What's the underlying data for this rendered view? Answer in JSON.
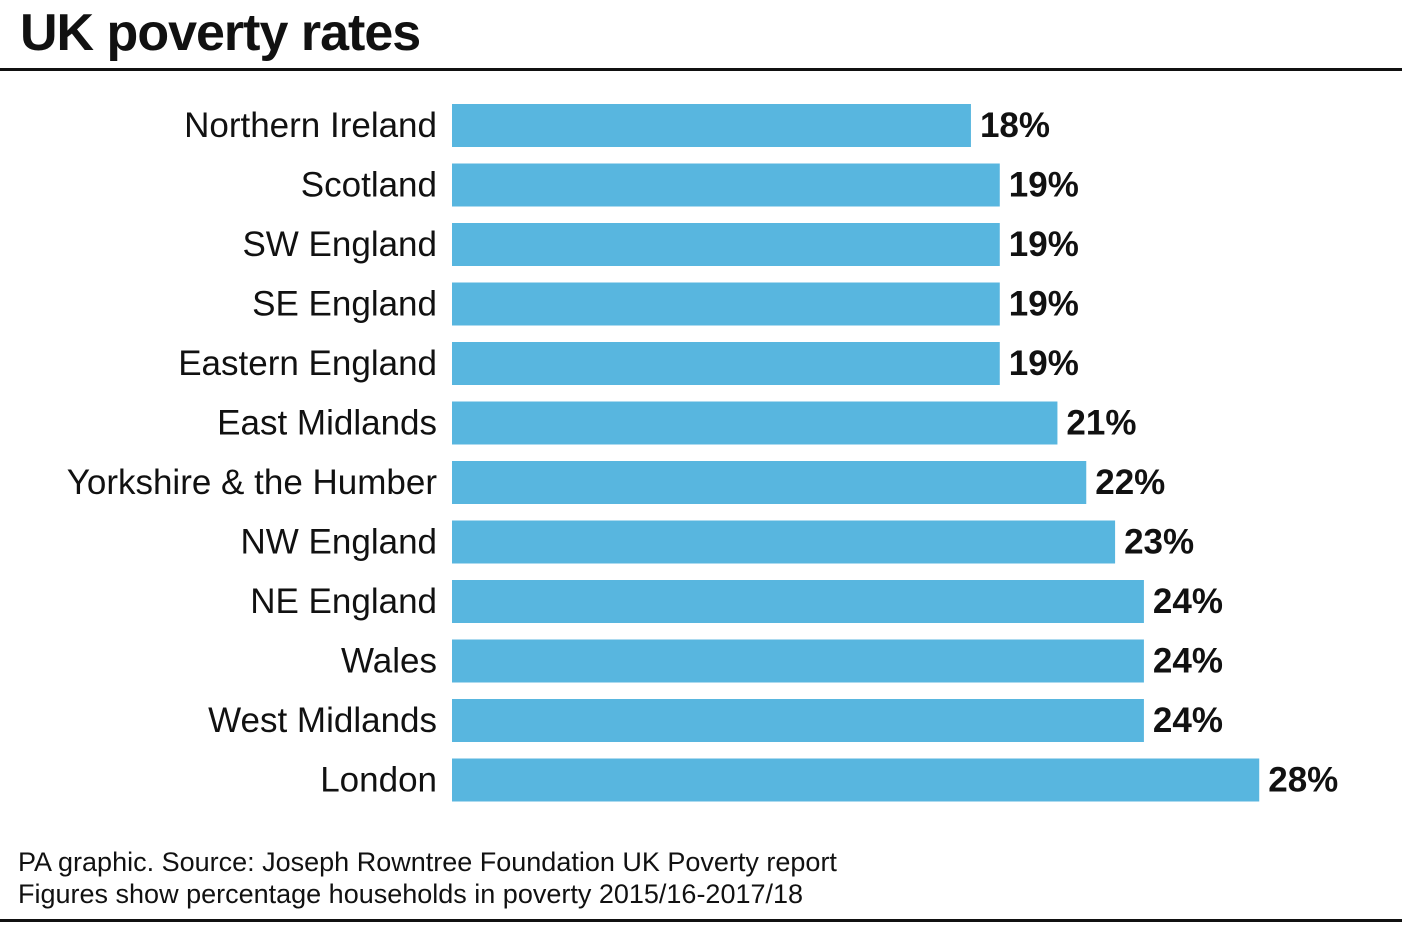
{
  "chart_data": {
    "type": "bar",
    "orientation": "horizontal",
    "title": "UK poverty rates",
    "categories": [
      "Northern Ireland",
      "Scotland",
      "SW England",
      "SE England",
      "Eastern England",
      "East Midlands",
      "Yorkshire & the Humber",
      "NW England",
      "NE England",
      "Wales",
      "West Midlands",
      "London"
    ],
    "values": [
      18,
      19,
      19,
      19,
      19,
      21,
      22,
      23,
      24,
      24,
      24,
      28
    ],
    "value_labels": [
      "18%",
      "19%",
      "19%",
      "19%",
      "19%",
      "21%",
      "22%",
      "23%",
      "24%",
      "24%",
      "24%",
      "28%"
    ],
    "unit": "%",
    "xlabel": "",
    "ylabel": "",
    "grid": false,
    "bar_color": "#58b6df"
  },
  "footer": {
    "source": "PA graphic. Source: Joseph Rowntree Foundation UK Poverty report",
    "note": "Figures show percentage households in poverty 2015/16-2017/18"
  }
}
